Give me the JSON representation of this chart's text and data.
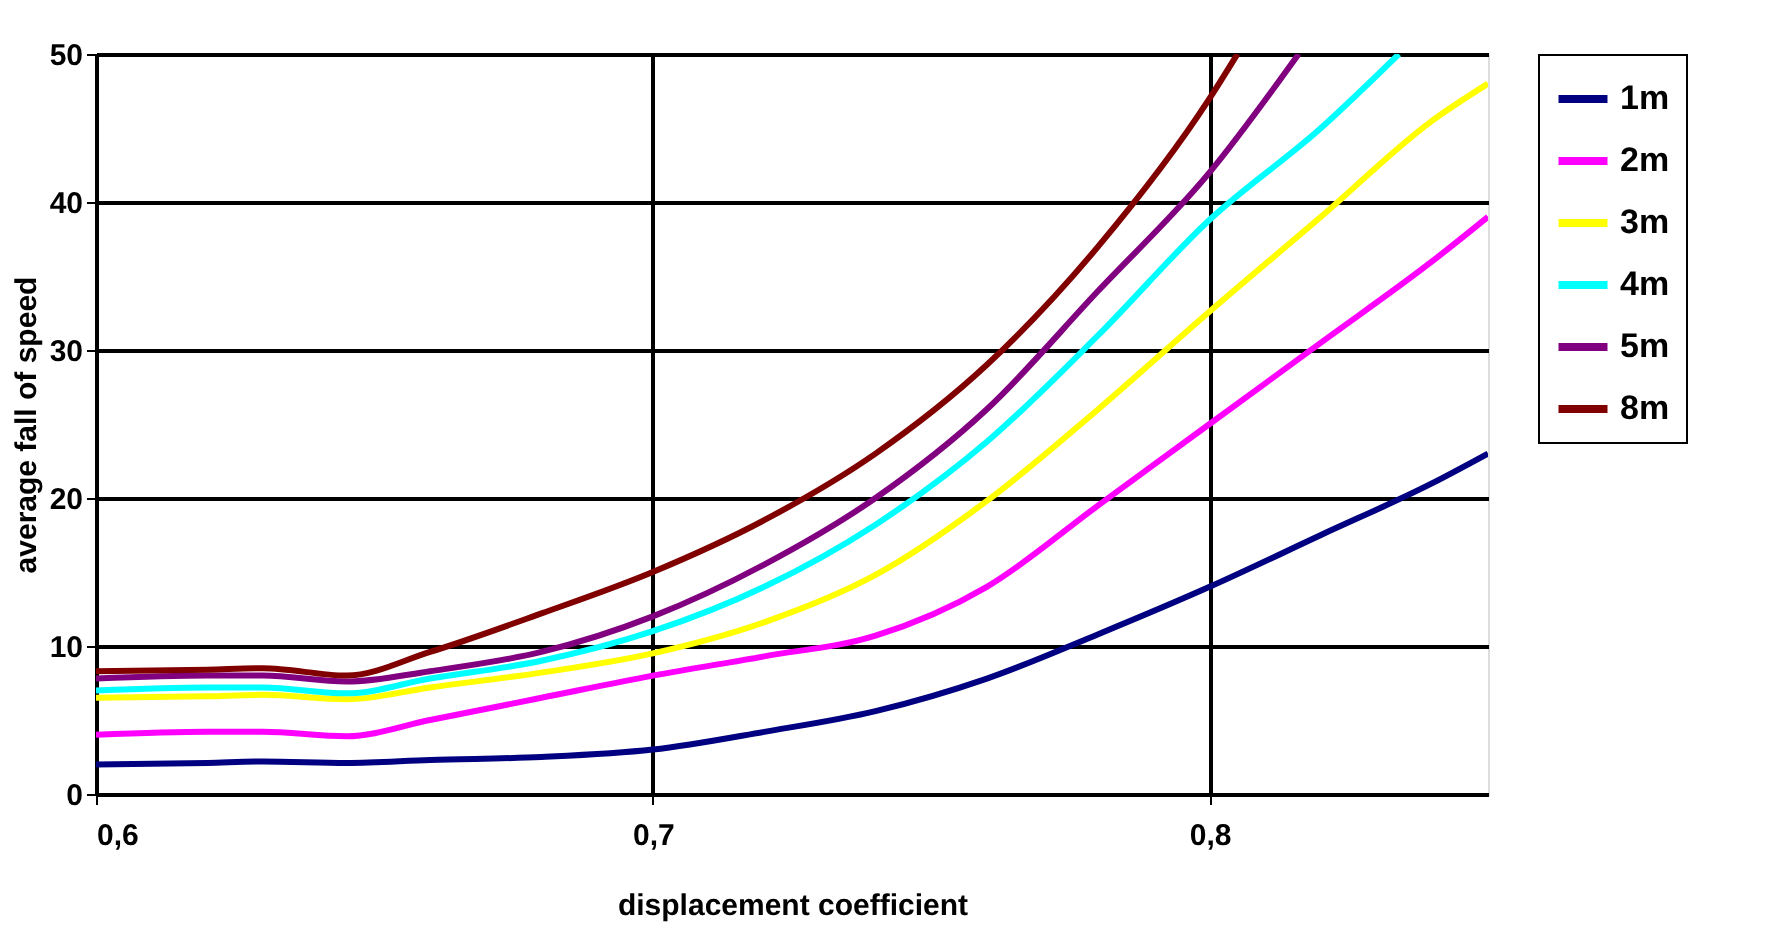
{
  "chart_data": {
    "type": "line",
    "xlabel": "displacement coefficient",
    "ylabel": "average fall of speed",
    "x": [
      0.6,
      0.62,
      0.63,
      0.645,
      0.66,
      0.68,
      0.7,
      0.72,
      0.74,
      0.76,
      0.78,
      0.8,
      0.82,
      0.84,
      0.85
    ],
    "xlim": [
      0.6,
      0.85
    ],
    "xticks": [
      {
        "value": 0.6,
        "label": "0,6"
      },
      {
        "value": 0.7,
        "label": "0,7"
      },
      {
        "value": 0.8,
        "label": "0,8"
      }
    ],
    "ylim": [
      0,
      50
    ],
    "yticks": [
      0,
      10,
      20,
      30,
      40,
      50
    ],
    "grid": true,
    "legend": "right",
    "marker": "none",
    "line_style": "solid",
    "series": [
      {
        "name": "1m",
        "color": "#000080",
        "values": [
          2,
          2.1,
          2.2,
          2.1,
          2.3,
          2.5,
          3,
          4.2,
          5.6,
          7.8,
          10.8,
          14,
          17.5,
          21,
          23
        ]
      },
      {
        "name": "2m",
        "color": "#ff00ff",
        "values": [
          4,
          4.2,
          4.2,
          3.9,
          5,
          6.5,
          8,
          9.3,
          10.7,
          14,
          19.5,
          25,
          30.5,
          36,
          39
        ]
      },
      {
        "name": "3m",
        "color": "#ffff00",
        "values": [
          6.5,
          6.6,
          6.7,
          6.4,
          7.2,
          8.2,
          9.5,
          11.6,
          14.8,
          19.8,
          26,
          32.6,
          39,
          45.5,
          48
        ]
      },
      {
        "name": "4m",
        "color": "#00ffff",
        "x": [
          0.6,
          0.62,
          0.63,
          0.645,
          0.66,
          0.68,
          0.7,
          0.72,
          0.74,
          0.76,
          0.78,
          0.8,
          0.82,
          0.834
        ],
        "values": [
          7,
          7.2,
          7.2,
          6.8,
          7.8,
          9,
          11,
          14,
          18.2,
          23.8,
          31,
          38.8,
          45,
          50
        ]
      },
      {
        "name": "5m",
        "color": "#800080",
        "x": [
          0.6,
          0.62,
          0.63,
          0.645,
          0.66,
          0.68,
          0.7,
          0.72,
          0.74,
          0.76,
          0.78,
          0.8,
          0.816
        ],
        "values": [
          7.8,
          8,
          8,
          7.6,
          8.3,
          9.6,
          12,
          15.5,
          20,
          26,
          34,
          42,
          50
        ]
      },
      {
        "name": "8m",
        "color": "#800000",
        "x": [
          0.6,
          0.62,
          0.63,
          0.645,
          0.66,
          0.68,
          0.7,
          0.72,
          0.74,
          0.76,
          0.78,
          0.8,
          0.805
        ],
        "values": [
          8.3,
          8.4,
          8.5,
          8,
          9.6,
          12.2,
          15,
          18.5,
          23,
          29,
          37,
          47,
          50
        ]
      }
    ]
  }
}
